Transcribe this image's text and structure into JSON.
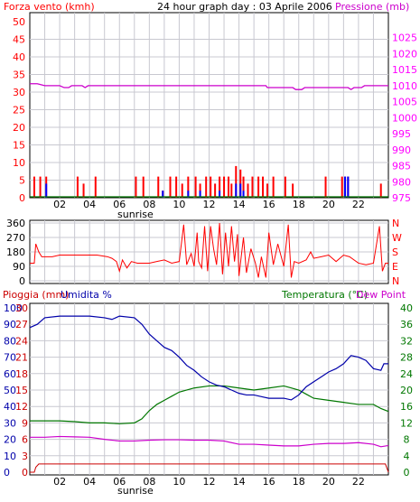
{
  "header": {
    "left_title": "Forza vento (kmh)",
    "center_title": "24 hour graph day : 03 Aprile 2006",
    "right_title": "Pressione (mb)"
  },
  "middle": {
    "compass_labels": [
      "N",
      "W",
      "S",
      "E",
      "N"
    ]
  },
  "bottom": {
    "left_title_1": "Pioggia (mm)",
    "left_title_2": "Umidita %",
    "right_title_1": "Temperatura (°C)",
    "right_title_2": "Dew Point",
    "sunrise": "sunrise"
  },
  "colors": {
    "wind": "#ff0000",
    "pressure": "#cc00cc",
    "gust": "#0000ff",
    "humidity": "#0000aa",
    "temperature": "#007700",
    "dewpoint": "#cc00cc",
    "rain": "#cc0000",
    "grid": "#c8c8d0",
    "axis_left": "#ff0000",
    "axis_right_top": "#ff00ff",
    "axis_right_bottom": "#007700"
  },
  "chart_data": [
    {
      "type": "bar",
      "title": "24 hour graph day : 03 Aprile 2006",
      "x_ticks": [
        "02",
        "04",
        "06",
        "08",
        "10",
        "12",
        "14",
        "16",
        "18",
        "20",
        "22"
      ],
      "left_axis": {
        "label": "Forza vento (kmh)",
        "ticks": [
          0,
          5,
          10,
          15,
          20,
          25,
          30,
          35,
          40,
          45,
          50
        ],
        "ylim": [
          0,
          50
        ]
      },
      "right_axis": {
        "label": "Pressione (mb)",
        "ticks": [
          975,
          980,
          985,
          990,
          995,
          1000,
          1005,
          1010,
          1015,
          1020,
          1025,
          1030
        ],
        "ylim": [
          975,
          1030
        ]
      },
      "wind_bars": [
        [
          0.3,
          6
        ],
        [
          0.7,
          6
        ],
        [
          1.1,
          6
        ],
        [
          3.2,
          6
        ],
        [
          3.6,
          4
        ],
        [
          4.4,
          6
        ],
        [
          7.1,
          6
        ],
        [
          7.6,
          6
        ],
        [
          8.6,
          6
        ],
        [
          8.9,
          2
        ],
        [
          9.4,
          6
        ],
        [
          9.8,
          6
        ],
        [
          10.2,
          4
        ],
        [
          10.6,
          6
        ],
        [
          11.1,
          6
        ],
        [
          11.4,
          4
        ],
        [
          11.8,
          6
        ],
        [
          12.1,
          6
        ],
        [
          12.4,
          4
        ],
        [
          12.7,
          6
        ],
        [
          13.0,
          6
        ],
        [
          13.3,
          6
        ],
        [
          13.5,
          4
        ],
        [
          13.8,
          9
        ],
        [
          14.1,
          8
        ],
        [
          14.3,
          6
        ],
        [
          14.6,
          4
        ],
        [
          14.9,
          6
        ],
        [
          15.3,
          6
        ],
        [
          15.6,
          6
        ],
        [
          15.9,
          4
        ],
        [
          16.3,
          6
        ],
        [
          17.1,
          6
        ],
        [
          17.6,
          4
        ],
        [
          19.8,
          6
        ],
        [
          20.9,
          6
        ],
        [
          21.1,
          6
        ],
        [
          21.3,
          6
        ],
        [
          23.5,
          4
        ]
      ],
      "gust_bars": [
        [
          1.1,
          4
        ],
        [
          8.9,
          2
        ],
        [
          10.6,
          2
        ],
        [
          11.4,
          2
        ],
        [
          12.7,
          2
        ],
        [
          13.8,
          4
        ],
        [
          14.1,
          4
        ],
        [
          14.3,
          2
        ],
        [
          21.1,
          6
        ],
        [
          21.3,
          6
        ]
      ],
      "pressure_series": [
        [
          0,
          1010.6
        ],
        [
          0.5,
          1010.6
        ],
        [
          1.0,
          1010.0
        ],
        [
          2.0,
          1010.0
        ],
        [
          2.3,
          1009.4
        ],
        [
          2.6,
          1009.4
        ],
        [
          2.8,
          1010.0
        ],
        [
          3.5,
          1010.0
        ],
        [
          3.7,
          1009.4
        ],
        [
          3.9,
          1010.0
        ],
        [
          6.0,
          1010.0
        ],
        [
          8.0,
          1010.0
        ],
        [
          12.0,
          1010.0
        ],
        [
          15.8,
          1010.0
        ],
        [
          15.9,
          1009.4
        ],
        [
          17.6,
          1009.4
        ],
        [
          17.8,
          1008.8
        ],
        [
          18.2,
          1008.8
        ],
        [
          18.4,
          1009.4
        ],
        [
          21.3,
          1009.4
        ],
        [
          21.5,
          1008.8
        ],
        [
          21.7,
          1009.4
        ],
        [
          22.2,
          1009.4
        ],
        [
          22.4,
          1010.0
        ],
        [
          24,
          1010.0
        ]
      ]
    },
    {
      "type": "line",
      "title": "",
      "left_axis": {
        "label": "",
        "ticks": [
          0,
          90,
          180,
          270,
          360
        ],
        "ylim": [
          0,
          360
        ]
      },
      "right_axis_labels": [
        "N",
        "W",
        "S",
        "E",
        "N"
      ],
      "wind_direction": [
        [
          0,
          110
        ],
        [
          0.3,
          110
        ],
        [
          0.4,
          230
        ],
        [
          0.6,
          180
        ],
        [
          0.8,
          150
        ],
        [
          1.5,
          150
        ],
        [
          2.0,
          160
        ],
        [
          3.0,
          160
        ],
        [
          4.5,
          160
        ],
        [
          5.2,
          150
        ],
        [
          5.5,
          140
        ],
        [
          5.8,
          120
        ],
        [
          6.0,
          60
        ],
        [
          6.2,
          130
        ],
        [
          6.5,
          80
        ],
        [
          6.8,
          120
        ],
        [
          7.2,
          110
        ],
        [
          8.0,
          110
        ],
        [
          8.5,
          120
        ],
        [
          9.0,
          130
        ],
        [
          9.5,
          110
        ],
        [
          10.0,
          120
        ],
        [
          10.3,
          350
        ],
        [
          10.5,
          100
        ],
        [
          10.8,
          170
        ],
        [
          11.0,
          90
        ],
        [
          11.2,
          300
        ],
        [
          11.3,
          120
        ],
        [
          11.5,
          80
        ],
        [
          11.7,
          340
        ],
        [
          11.9,
          60
        ],
        [
          12.1,
          340
        ],
        [
          12.3,
          200
        ],
        [
          12.5,
          100
        ],
        [
          12.7,
          360
        ],
        [
          12.9,
          40
        ],
        [
          13.1,
          300
        ],
        [
          13.3,
          90
        ],
        [
          13.5,
          340
        ],
        [
          13.7,
          120
        ],
        [
          13.9,
          290
        ],
        [
          14.0,
          30
        ],
        [
          14.3,
          270
        ],
        [
          14.5,
          50
        ],
        [
          14.8,
          200
        ],
        [
          15.1,
          110
        ],
        [
          15.3,
          20
        ],
        [
          15.5,
          150
        ],
        [
          15.8,
          20
        ],
        [
          16.0,
          300
        ],
        [
          16.3,
          100
        ],
        [
          16.6,
          230
        ],
        [
          17.0,
          90
        ],
        [
          17.3,
          350
        ],
        [
          17.5,
          20
        ],
        [
          17.7,
          120
        ],
        [
          18.0,
          110
        ],
        [
          18.5,
          130
        ],
        [
          18.8,
          180
        ],
        [
          19.0,
          140
        ],
        [
          19.5,
          150
        ],
        [
          20.0,
          160
        ],
        [
          20.5,
          120
        ],
        [
          21.0,
          160
        ],
        [
          21.4,
          150
        ],
        [
          22.0,
          110
        ],
        [
          22.5,
          100
        ],
        [
          23.0,
          110
        ],
        [
          23.4,
          340
        ],
        [
          23.6,
          60
        ],
        [
          23.8,
          110
        ],
        [
          24,
          110
        ]
      ]
    },
    {
      "type": "line",
      "title": "",
      "left_axis_rain": {
        "label": "Pioggia (mm)",
        "ticks": [
          0,
          1,
          2,
          3,
          4,
          5,
          6,
          7,
          8,
          9,
          10
        ],
        "ylim": [
          0,
          10
        ]
      },
      "left_axis_humidity": {
        "label": "Umidita %",
        "ticks": [
          0,
          10,
          20,
          30,
          40,
          50,
          60,
          70,
          80,
          90,
          100
        ],
        "ylim": [
          0,
          100
        ]
      },
      "left_axis_inner": {
        "ticks": [
          0,
          3,
          6,
          9,
          12,
          15,
          18,
          21,
          24,
          27,
          30
        ],
        "ylim": [
          0,
          30
        ]
      },
      "right_axis": {
        "label": "Temperatura (°C)",
        "ticks": [
          0,
          4,
          8,
          12,
          16,
          20,
          24,
          28,
          32,
          36,
          40
        ],
        "ylim": [
          0,
          40
        ]
      },
      "right_label_2": "Dew Point",
      "humidity": [
        [
          0,
          88
        ],
        [
          0.5,
          90
        ],
        [
          1.0,
          94
        ],
        [
          2.0,
          95
        ],
        [
          3.0,
          95
        ],
        [
          4.0,
          95
        ],
        [
          5.0,
          94
        ],
        [
          5.5,
          93
        ],
        [
          6.0,
          95
        ],
        [
          7.0,
          94
        ],
        [
          7.5,
          90
        ],
        [
          8.0,
          84
        ],
        [
          8.5,
          80
        ],
        [
          9.0,
          76
        ],
        [
          9.5,
          74
        ],
        [
          10.0,
          70
        ],
        [
          10.5,
          65
        ],
        [
          11.0,
          62
        ],
        [
          11.5,
          58
        ],
        [
          12.0,
          55
        ],
        [
          12.5,
          53
        ],
        [
          13.0,
          52
        ],
        [
          13.5,
          50
        ],
        [
          14.0,
          48
        ],
        [
          14.5,
          47
        ],
        [
          15.0,
          47
        ],
        [
          15.5,
          46
        ],
        [
          16.0,
          45
        ],
        [
          17.0,
          45
        ],
        [
          17.5,
          44
        ],
        [
          18.0,
          47
        ],
        [
          18.5,
          52
        ],
        [
          19.0,
          55
        ],
        [
          19.5,
          58
        ],
        [
          20.0,
          61
        ],
        [
          20.5,
          63
        ],
        [
          21.0,
          66
        ],
        [
          21.5,
          71
        ],
        [
          22.0,
          70
        ],
        [
          22.5,
          68
        ],
        [
          23.0,
          63
        ],
        [
          23.5,
          62
        ],
        [
          23.7,
          66
        ],
        [
          24,
          66
        ]
      ],
      "temperature": [
        [
          0,
          12.5
        ],
        [
          1.0,
          12.5
        ],
        [
          2.0,
          12.5
        ],
        [
          3.0,
          12.3
        ],
        [
          4.0,
          12.0
        ],
        [
          5.0,
          12.0
        ],
        [
          6.0,
          11.8
        ],
        [
          7.0,
          12.0
        ],
        [
          7.5,
          13.0
        ],
        [
          8.0,
          15.0
        ],
        [
          8.5,
          16.5
        ],
        [
          9.0,
          17.5
        ],
        [
          9.5,
          18.5
        ],
        [
          10.0,
          19.5
        ],
        [
          11.0,
          20.5
        ],
        [
          12.0,
          21.0
        ],
        [
          13.0,
          21.0
        ],
        [
          14.0,
          20.5
        ],
        [
          15.0,
          20.0
        ],
        [
          16.0,
          20.5
        ],
        [
          17.0,
          21.0
        ],
        [
          17.5,
          20.5
        ],
        [
          18.0,
          20.0
        ],
        [
          18.5,
          19.0
        ],
        [
          19.0,
          18.0
        ],
        [
          20.0,
          17.5
        ],
        [
          21.0,
          17.0
        ],
        [
          22.0,
          16.5
        ],
        [
          23.0,
          16.5
        ],
        [
          23.5,
          15.5
        ],
        [
          24,
          14.8
        ]
      ],
      "dewpoint": [
        [
          0,
          8.5
        ],
        [
          1.0,
          8.5
        ],
        [
          2.0,
          8.7
        ],
        [
          3.0,
          8.6
        ],
        [
          4.0,
          8.5
        ],
        [
          5.0,
          8.0
        ],
        [
          6.0,
          7.6
        ],
        [
          7.0,
          7.6
        ],
        [
          8.0,
          7.8
        ],
        [
          9.0,
          7.9
        ],
        [
          10.0,
          7.9
        ],
        [
          11.0,
          7.8
        ],
        [
          12.0,
          7.8
        ],
        [
          13.0,
          7.6
        ],
        [
          14.0,
          6.8
        ],
        [
          15.0,
          6.8
        ],
        [
          16.0,
          6.6
        ],
        [
          17.0,
          6.4
        ],
        [
          18.0,
          6.4
        ],
        [
          19.0,
          6.8
        ],
        [
          20.0,
          7.0
        ],
        [
          21.0,
          7.0
        ],
        [
          22.0,
          7.2
        ],
        [
          23.0,
          6.8
        ],
        [
          23.5,
          6.2
        ],
        [
          24,
          6.5
        ]
      ],
      "rain": [
        [
          0,
          0
        ],
        [
          0.3,
          0
        ],
        [
          0.4,
          0.3
        ],
        [
          0.6,
          0.5
        ],
        [
          23.8,
          0.5
        ],
        [
          24,
          0
        ]
      ]
    }
  ]
}
